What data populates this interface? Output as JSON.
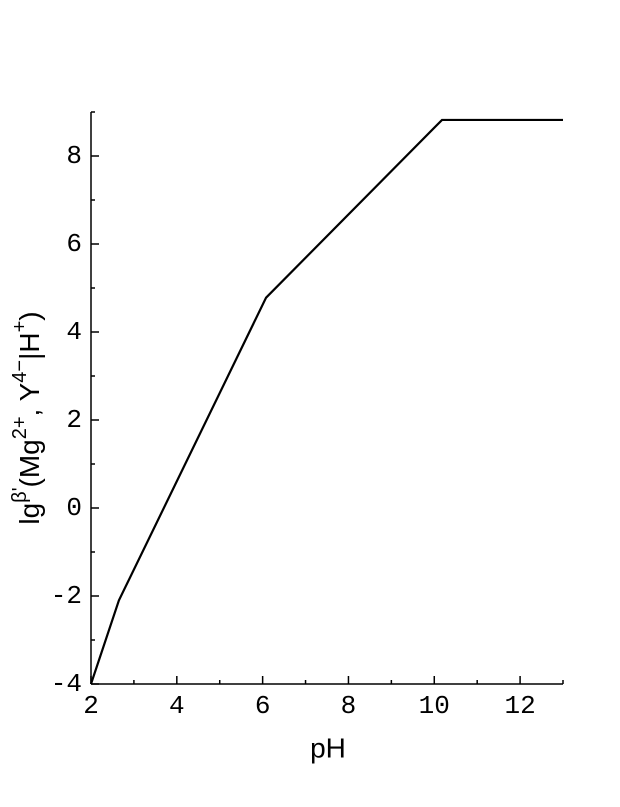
{
  "chart_data": {
    "type": "line",
    "x_label": "pH",
    "y_label": [
      {
        "text": "lg",
        "sup": false
      },
      {
        "text": "β'",
        "sup": true
      },
      {
        "text": "(Mg",
        "sup": false
      },
      {
        "text": "2+",
        "sup": true
      },
      {
        "text": ", Y",
        "sup": false
      },
      {
        "text": "4−",
        "sup": true
      },
      {
        "text": "|H",
        "sup": false
      },
      {
        "text": "+",
        "sup": true
      },
      {
        "text": ")",
        "sup": false
      }
    ],
    "x": [
      2,
      2.65,
      6.08,
      10.18,
      13
    ],
    "series": [
      {
        "color": "#000000",
        "values": [
          -4,
          -2.1,
          4.78,
          8.82,
          8.82
        ]
      }
    ],
    "xlim": [
      2,
      13
    ],
    "ylim": [
      -4,
      9
    ],
    "xticks": [
      2,
      4,
      6,
      8,
      10,
      12
    ],
    "yticks": [
      -4,
      -2,
      0,
      2,
      4,
      6,
      8
    ],
    "x_minor_ticks": [
      3,
      5,
      7,
      9,
      11,
      13
    ],
    "y_minor_ticks": [
      -3,
      -1,
      1,
      3,
      5,
      7,
      9
    ]
  }
}
